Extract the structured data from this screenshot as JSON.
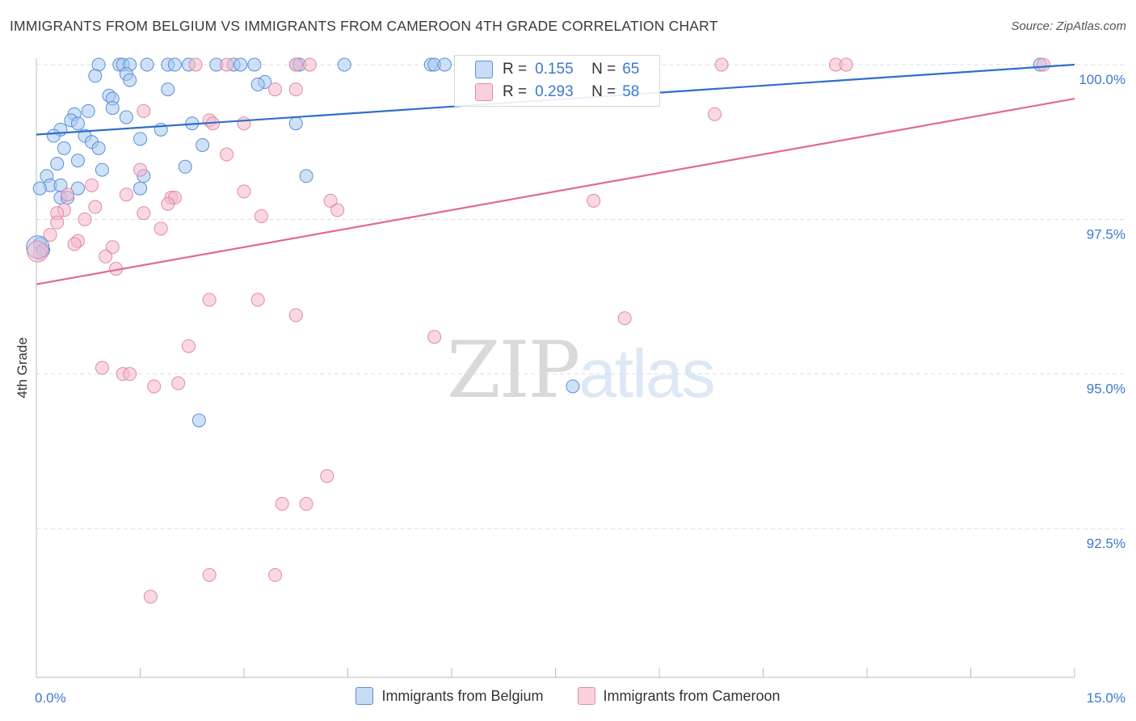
{
  "title": "IMMIGRANTS FROM BELGIUM VS IMMIGRANTS FROM CAMEROON 4TH GRADE CORRELATION CHART",
  "source": "Source: ZipAtlas.com",
  "watermark": {
    "zip": "ZIP",
    "atlas": "atlas"
  },
  "legend_box": {
    "rows": [
      {
        "r_label": "R =",
        "r_value": "0.155",
        "n_label": "N =",
        "n_value": "65"
      },
      {
        "r_label": "R =",
        "r_value": "0.293",
        "n_label": "N =",
        "n_value": "58"
      }
    ]
  },
  "colors": {
    "belgium_fill": "#a8c8f0",
    "belgium_stroke": "#5a8fd6",
    "belgium_line": "#2f6fc9",
    "cameroon_fill": "#f6b8cb",
    "cameroon_stroke": "#e08aa6",
    "cameroon_line": "#e06a93",
    "tick_label": "#3b78d0",
    "grid": "#dddddd"
  },
  "chart_data": {
    "type": "scatter",
    "title": "IMMIGRANTS FROM BELGIUM VS IMMIGRANTS FROM CAMEROON 4TH GRADE CORRELATION CHART",
    "xlabel": "",
    "ylabel": "4th Grade",
    "xlim": [
      0,
      15
    ],
    "ylim": [
      90.0,
      100.25
    ],
    "x_tick_labels": [
      {
        "value": 0,
        "label": "0.0%"
      },
      {
        "value": 15,
        "label": "15.0%"
      }
    ],
    "x_minor_ticks": [
      1.5,
      3.0,
      4.5,
      6.0,
      7.5,
      9.0,
      10.5,
      12.0,
      13.5,
      15.0
    ],
    "y_tick_labels": [
      {
        "value": 100.0,
        "label": "100.0%"
      },
      {
        "value": 97.5,
        "label": "97.5%"
      },
      {
        "value": 95.0,
        "label": "95.0%"
      },
      {
        "value": 92.5,
        "label": "92.5%"
      }
    ],
    "legend": [
      "Immigrants from Belgium",
      "Immigrants from Cameroon"
    ],
    "series": [
      {
        "name": "Immigrants from Belgium",
        "trend": {
          "x": [
            0,
            15
          ],
          "y": [
            98.87,
            100.0
          ]
        },
        "points": [
          [
            0.9,
            100.0
          ],
          [
            1.2,
            100.0
          ],
          [
            1.25,
            100.0
          ],
          [
            1.35,
            100.0
          ],
          [
            1.6,
            100.0
          ],
          [
            1.9,
            100.0
          ],
          [
            2.0,
            100.0
          ],
          [
            2.2,
            100.0
          ],
          [
            2.6,
            100.0
          ],
          [
            2.85,
            100.0
          ],
          [
            2.95,
            100.0
          ],
          [
            3.15,
            100.0
          ],
          [
            3.75,
            100.0
          ],
          [
            3.8,
            100.0
          ],
          [
            4.45,
            100.0
          ],
          [
            5.7,
            100.0
          ],
          [
            5.75,
            100.0
          ],
          [
            5.9,
            100.0
          ],
          [
            14.5,
            100.0
          ],
          [
            0.85,
            99.82
          ],
          [
            1.3,
            99.85
          ],
          [
            1.35,
            99.75
          ],
          [
            3.3,
            99.72
          ],
          [
            3.2,
            99.68
          ],
          [
            1.9,
            99.6
          ],
          [
            1.05,
            99.5
          ],
          [
            1.1,
            99.45
          ],
          [
            1.1,
            99.3
          ],
          [
            0.75,
            99.25
          ],
          [
            0.55,
            99.2
          ],
          [
            1.3,
            99.15
          ],
          [
            0.5,
            99.1
          ],
          [
            0.6,
            99.05
          ],
          [
            0.35,
            98.95
          ],
          [
            1.8,
            98.95
          ],
          [
            2.25,
            99.05
          ],
          [
            3.75,
            99.05
          ],
          [
            0.25,
            98.85
          ],
          [
            0.7,
            98.85
          ],
          [
            0.8,
            98.75
          ],
          [
            1.5,
            98.8
          ],
          [
            2.4,
            98.7
          ],
          [
            0.4,
            98.65
          ],
          [
            0.9,
            98.65
          ],
          [
            0.6,
            98.45
          ],
          [
            0.3,
            98.4
          ],
          [
            2.15,
            98.35
          ],
          [
            0.95,
            98.3
          ],
          [
            0.15,
            98.2
          ],
          [
            1.55,
            98.2
          ],
          [
            3.9,
            98.2
          ],
          [
            0.2,
            98.05
          ],
          [
            0.35,
            98.05
          ],
          [
            0.6,
            98.0
          ],
          [
            1.5,
            98.0
          ],
          [
            0.05,
            98.0
          ],
          [
            0.35,
            97.85
          ],
          [
            0.45,
            97.85
          ],
          [
            0.05,
            97.1
          ],
          [
            0.1,
            97.0
          ],
          [
            7.75,
            94.8
          ],
          [
            2.35,
            94.25
          ]
        ]
      },
      {
        "name": "Immigrants from Cameroon",
        "trend": {
          "x": [
            0,
            15
          ],
          "y": [
            96.45,
            99.45
          ]
        },
        "points": [
          [
            2.3,
            100.0
          ],
          [
            2.75,
            100.0
          ],
          [
            3.75,
            100.0
          ],
          [
            3.95,
            100.0
          ],
          [
            9.9,
            100.0
          ],
          [
            11.55,
            100.0
          ],
          [
            11.7,
            100.0
          ],
          [
            14.55,
            100.0
          ],
          [
            3.45,
            99.6
          ],
          [
            3.75,
            99.6
          ],
          [
            1.55,
            99.25
          ],
          [
            2.5,
            99.1
          ],
          [
            2.55,
            99.05
          ],
          [
            3.0,
            99.05
          ],
          [
            9.8,
            99.2
          ],
          [
            2.75,
            98.55
          ],
          [
            0.8,
            98.05
          ],
          [
            1.5,
            98.3
          ],
          [
            3.0,
            97.95
          ],
          [
            1.3,
            97.9
          ],
          [
            1.95,
            97.85
          ],
          [
            2.0,
            97.85
          ],
          [
            0.45,
            97.9
          ],
          [
            0.85,
            97.7
          ],
          [
            1.9,
            97.75
          ],
          [
            4.25,
            97.8
          ],
          [
            8.05,
            97.8
          ],
          [
            4.35,
            97.65
          ],
          [
            0.4,
            97.65
          ],
          [
            0.3,
            97.6
          ],
          [
            1.55,
            97.6
          ],
          [
            3.25,
            97.55
          ],
          [
            0.7,
            97.5
          ],
          [
            0.3,
            97.45
          ],
          [
            1.8,
            97.35
          ],
          [
            0.2,
            97.25
          ],
          [
            0.6,
            97.15
          ],
          [
            0.55,
            97.1
          ],
          [
            1.1,
            97.05
          ],
          [
            0.05,
            96.95
          ],
          [
            1.0,
            96.9
          ],
          [
            1.15,
            96.7
          ],
          [
            2.5,
            96.2
          ],
          [
            3.2,
            96.2
          ],
          [
            3.75,
            95.95
          ],
          [
            8.5,
            95.9
          ],
          [
            5.75,
            95.6
          ],
          [
            2.2,
            95.45
          ],
          [
            0.95,
            95.1
          ],
          [
            1.25,
            95.0
          ],
          [
            1.35,
            95.0
          ],
          [
            1.7,
            94.8
          ],
          [
            2.05,
            94.85
          ],
          [
            4.2,
            93.35
          ],
          [
            3.55,
            92.9
          ],
          [
            3.9,
            92.9
          ],
          [
            2.5,
            91.75
          ],
          [
            3.45,
            91.75
          ],
          [
            1.65,
            91.4
          ]
        ]
      }
    ]
  },
  "bottom_legend": [
    "Immigrants from Belgium",
    "Immigrants from Cameroon"
  ]
}
